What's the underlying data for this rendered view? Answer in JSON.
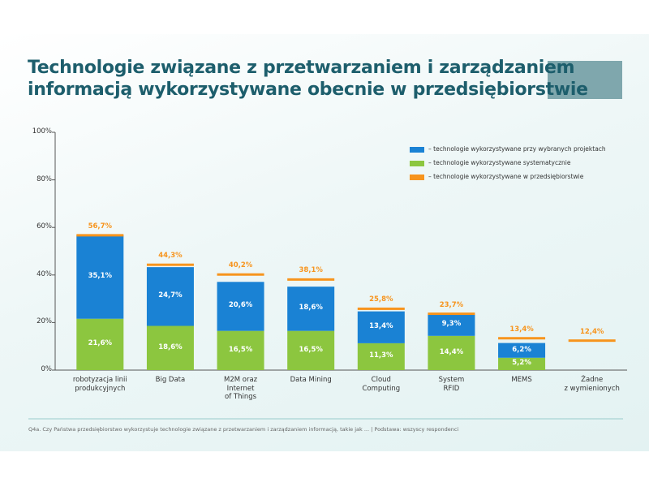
{
  "chart_data": {
    "type": "bar",
    "title": "Technologie związane z przetwarzaniem i zarządzaniem\ninformacją wykorzystywane obecnie w przedsiębiorstwie",
    "categories": [
      "robotyzacja linii\nprodukcyjnych",
      "Big Data",
      "M2M oraz\nInternet\nof Things",
      "Data Mining",
      "Cloud\nComputing",
      "System\nRFID",
      "MEMS",
      "Żadne\nz wymienionych"
    ],
    "series": [
      {
        "name": "– technologie wykorzystywane przy wybranych projektach",
        "color": "#1a82d4",
        "values": [
          35.1,
          24.7,
          20.6,
          18.6,
          13.4,
          9.3,
          6.2,
          null
        ],
        "value_labels": [
          "35,1%",
          "24,7%",
          "20,6%",
          "18,6%",
          "13,4%",
          "9,3%",
          "6,2%",
          null
        ]
      },
      {
        "name": "– technologie wykorzystywane systematycznie",
        "color": "#8cc63f",
        "values": [
          21.6,
          18.6,
          16.5,
          16.5,
          11.3,
          14.4,
          5.2,
          null
        ],
        "value_labels": [
          "21,6%",
          "18,6%",
          "16,5%",
          "16,5%",
          "11,3%",
          "14,4%",
          "5,2%",
          null
        ]
      },
      {
        "name": "– technologie wykorzystywane w przedsiębiorstwie",
        "color": "#f7941d",
        "values": [
          56.7,
          44.3,
          40.2,
          38.1,
          25.8,
          23.7,
          13.4,
          12.4
        ],
        "value_labels": [
          "56,7%",
          "44,3%",
          "40,2%",
          "38,1%",
          "25,8%",
          "23,7%",
          "13,4%",
          "12,4%"
        ]
      }
    ],
    "ylim": [
      0,
      100
    ],
    "yticks": [
      {
        "value": 0,
        "label": "0%"
      },
      {
        "value": 20,
        "label": "20%"
      },
      {
        "value": 40,
        "label": "40%"
      },
      {
        "value": 60,
        "label": "60%"
      },
      {
        "value": 80,
        "label": "80%"
      },
      {
        "value": 100,
        "label": "100%"
      }
    ],
    "note": "Q4a. Czy Państwa przedsiębiorstwo wykorzystuje technologie związane z przetwarzaniem i zarządzaniem informacją, takie jak ... | Podstawa: wszyscy respondenci"
  }
}
